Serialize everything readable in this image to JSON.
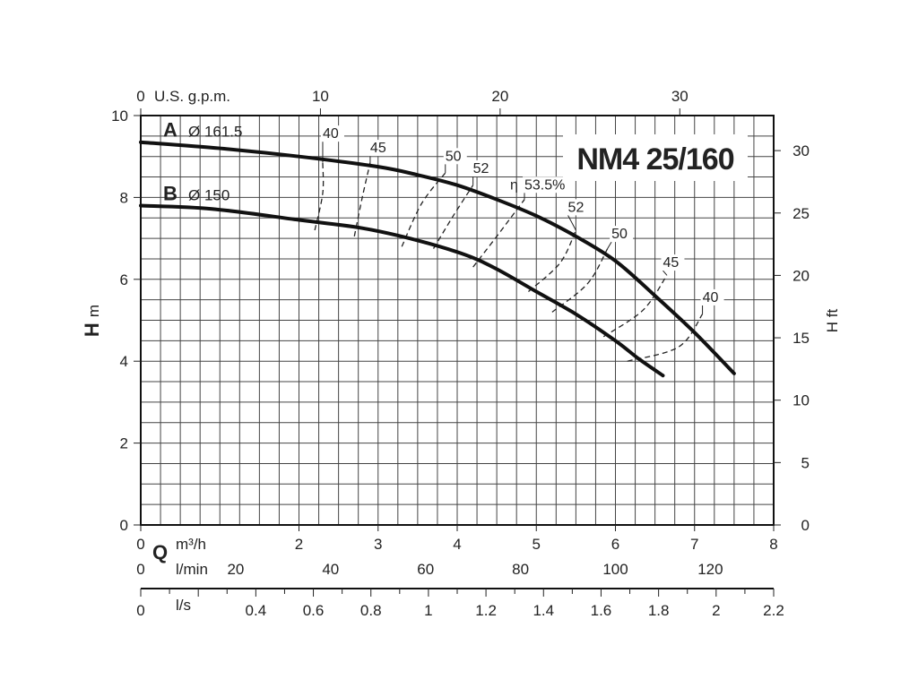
{
  "chart_data": {
    "type": "line",
    "title": "NM4 25/160",
    "x_primary": {
      "quantity": "Q",
      "unit": "m³/h",
      "range": [
        0,
        8
      ],
      "ticks": [
        0,
        2,
        3,
        4,
        5,
        6,
        7,
        8
      ]
    },
    "x_top": {
      "unit": "U.S. g.p.m.",
      "ticks": [
        0,
        10,
        20,
        30
      ]
    },
    "x_lmin": {
      "unit": "l/min",
      "ticks": [
        0,
        20,
        40,
        60,
        80,
        100,
        120
      ]
    },
    "x_ls": {
      "unit": "l/s",
      "ticks": [
        "0",
        "0.4",
        "0.6",
        "0.8",
        "1",
        "1.2",
        "1.4",
        "1.6",
        "1.8",
        "2",
        "2.2"
      ]
    },
    "y_left": {
      "quantity": "H",
      "unit": "m",
      "range": [
        0,
        10
      ],
      "ticks": [
        0,
        2,
        4,
        6,
        8,
        10
      ]
    },
    "y_right": {
      "unit": "H ft",
      "ticks": [
        0,
        5,
        10,
        15,
        20,
        25,
        30
      ]
    },
    "grid": true,
    "series": [
      {
        "letter": "A",
        "diameter": "Ø 161.5",
        "x": [
          0,
          1,
          2,
          3,
          3.5,
          4,
          4.5,
          5,
          5.5,
          6,
          6.5,
          7,
          7.5
        ],
        "y": [
          9.35,
          9.2,
          9.0,
          8.75,
          8.55,
          8.3,
          7.95,
          7.55,
          7.05,
          6.45,
          5.6,
          4.7,
          3.7
        ]
      },
      {
        "letter": "B",
        "diameter": "Ø 150",
        "x": [
          0,
          0.9,
          2,
          2.8,
          3.5,
          4.1,
          4.5,
          5,
          5.5,
          6,
          6.3,
          6.6
        ],
        "y": [
          7.8,
          7.72,
          7.45,
          7.25,
          6.95,
          6.6,
          6.25,
          5.7,
          5.15,
          4.5,
          4.05,
          3.65
        ]
      }
    ],
    "efficiency_curves": [
      {
        "label": "40",
        "points": [
          [
            2.2,
            7.2
          ],
          [
            2.3,
            8.1
          ],
          [
            2.3,
            8.85
          ]
        ],
        "label_at": [
          2.3,
          9.45
        ]
      },
      {
        "label": "45",
        "points": [
          [
            2.7,
            7.05
          ],
          [
            2.8,
            8.0
          ],
          [
            2.9,
            8.85
          ]
        ],
        "label_at": [
          2.9,
          9.1
        ]
      },
      {
        "label": "50",
        "points": [
          [
            3.3,
            6.8
          ],
          [
            3.55,
            7.85
          ],
          [
            3.85,
            8.6
          ]
        ],
        "label_at": [
          3.85,
          8.9
        ]
      },
      {
        "label": "52",
        "points": [
          [
            3.7,
            6.75
          ],
          [
            3.95,
            7.55
          ],
          [
            4.2,
            8.3
          ]
        ],
        "label_at": [
          4.2,
          8.6
        ]
      },
      {
        "label": "53.5%",
        "points": [
          [
            4.2,
            6.3
          ],
          [
            4.5,
            7.05
          ],
          [
            4.85,
            7.95
          ]
        ],
        "label_at": [
          4.85,
          8.2
        ]
      },
      {
        "label": "52",
        "points": [
          [
            4.9,
            5.7
          ],
          [
            5.3,
            6.4
          ],
          [
            5.5,
            7.2
          ]
        ],
        "label_at": [
          5.4,
          7.65
        ]
      },
      {
        "label": "50",
        "points": [
          [
            5.2,
            5.2
          ],
          [
            5.65,
            5.9
          ],
          [
            5.9,
            6.75
          ]
        ],
        "label_at": [
          5.95,
          7.0
        ]
      },
      {
        "label": "45",
        "points": [
          [
            5.85,
            4.6
          ],
          [
            6.35,
            5.25
          ],
          [
            6.65,
            6.1
          ]
        ],
        "label_at": [
          6.6,
          6.3
        ]
      },
      {
        "label": "40",
        "points": [
          [
            6.15,
            4.0
          ],
          [
            6.8,
            4.35
          ],
          [
            7.1,
            5.15
          ]
        ],
        "label_at": [
          7.1,
          5.45
        ]
      }
    ],
    "efficiency_symbol": "η"
  }
}
